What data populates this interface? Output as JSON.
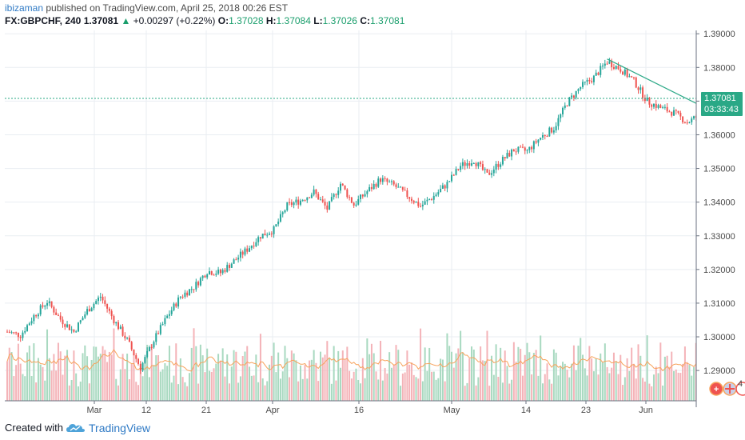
{
  "header": {
    "username": "ibizaman",
    "published_text": "published on TradingView.com, April 25, 2018 00:26 EST",
    "symbol": "FX:GBPCHF, 240",
    "last": "1.37081",
    "change_arrow": "▲",
    "change": "+0.00297 (+0.22%)",
    "o_label": "O:",
    "o_value": "1.37028",
    "h_label": "H:",
    "h_value": "1.37084",
    "l_label": "L:",
    "l_value": "1.37026",
    "c_label": "C:",
    "c_value": "1.37081"
  },
  "footer": {
    "created_with": "Created with",
    "brand": "TradingView",
    "logo_icon": "tradingview-cloud-icon"
  },
  "colors": {
    "up": "#26a69a",
    "down": "#ef5350",
    "up_vol": "#a8d9c0",
    "down_vol": "#f4b3b8",
    "ma": "#f7a35c",
    "trend": "#2aa886",
    "grid": "#e9edf2",
    "price_line": "#2aa886"
  },
  "chart_data": {
    "type": "candlestick",
    "ylim": [
      1.281,
      1.391
    ],
    "y_ticks": [
      "1.39000",
      "1.38000",
      "1.37000",
      "1.36000",
      "1.35000",
      "1.34000",
      "1.33000",
      "1.32000",
      "1.31000",
      "1.30000",
      "1.29000"
    ],
    "x_ticks": [
      "Mar",
      "12",
      "21",
      "Apr",
      "16",
      "May",
      "14",
      "23",
      "Jun"
    ],
    "last_price_label": "1.37081",
    "countdown_label": "03:33:43",
    "close_path": [
      [
        0,
        1.3015
      ],
      [
        6,
        1.3005
      ],
      [
        12,
        1.3062
      ],
      [
        18,
        1.3105
      ],
      [
        24,
        1.3052
      ],
      [
        30,
        1.3015
      ],
      [
        36,
        1.3078
      ],
      [
        42,
        1.312
      ],
      [
        48,
        1.305
      ],
      [
        54,
        1.299
      ],
      [
        60,
        1.2908
      ],
      [
        66,
        1.299
      ],
      [
        72,
        1.306
      ],
      [
        78,
        1.312
      ],
      [
        84,
        1.3148
      ],
      [
        90,
        1.3195
      ],
      [
        96,
        1.319
      ],
      [
        102,
        1.3225
      ],
      [
        108,
        1.326
      ],
      [
        114,
        1.33
      ],
      [
        120,
        1.3318
      ],
      [
        126,
        1.339
      ],
      [
        132,
        1.3405
      ],
      [
        138,
        1.343
      ],
      [
        144,
        1.338
      ],
      [
        150,
        1.3455
      ],
      [
        156,
        1.3392
      ],
      [
        162,
        1.3432
      ],
      [
        168,
        1.3468
      ],
      [
        174,
        1.345
      ],
      [
        180,
        1.342
      ],
      [
        186,
        1.3388
      ],
      [
        192,
        1.3418
      ],
      [
        198,
        1.3455
      ],
      [
        204,
        1.3508
      ],
      [
        210,
        1.3525
      ],
      [
        216,
        1.348
      ],
      [
        222,
        1.352
      ],
      [
        228,
        1.3555
      ],
      [
        234,
        1.3552
      ],
      [
        240,
        1.3592
      ],
      [
        246,
        1.362
      ],
      [
        252,
        1.3695
      ],
      [
        258,
        1.3742
      ],
      [
        264,
        1.377
      ],
      [
        270,
        1.3818
      ],
      [
        276,
        1.3795
      ],
      [
        282,
        1.376
      ],
      [
        288,
        1.37
      ],
      [
        294,
        1.368
      ],
      [
        300,
        1.3665
      ],
      [
        306,
        1.3637
      ],
      [
        312,
        1.366
      ],
      [
        318,
        1.3708
      ]
    ],
    "close_path_x_units": "4h bars since Feb 19 2018",
    "volume_ma_note": "volume histogram with moving average",
    "annotations": {
      "trendline": {
        "from": [
          270,
          1.3825
        ],
        "to": [
          336,
          1.3608
        ]
      },
      "projection_curve": "upward curve after last bar"
    },
    "events_badges": [
      "+",
      "🇬🇧",
      "4"
    ]
  }
}
